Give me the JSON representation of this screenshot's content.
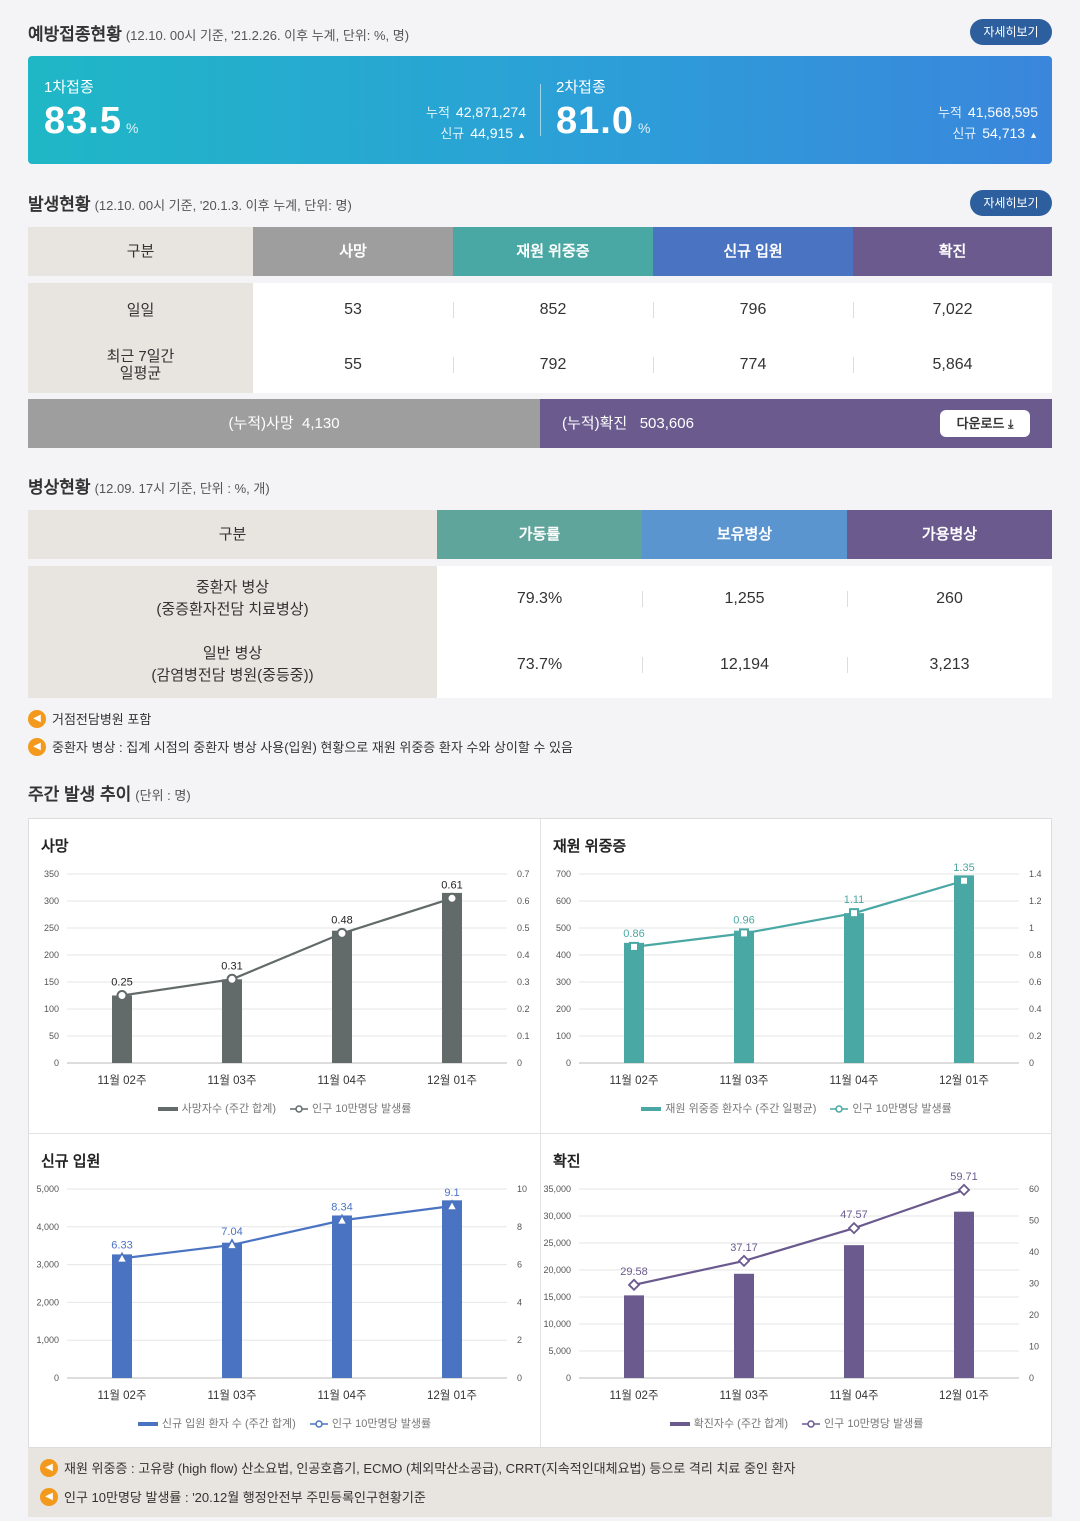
{
  "vaccination": {
    "title": "예방접종현황",
    "subtitle": "(12.10. 00시 기준, '21.2.26. 이후 누계, 단위: %, 명)",
    "detail_label": "자세히보기",
    "first": {
      "label": "1차접종",
      "pct": "83.5",
      "unit": "%",
      "cum_label": "누적",
      "cum": "42,871,274",
      "new_label": "신규",
      "new": "44,915"
    },
    "second": {
      "label": "2차접종",
      "pct": "81.0",
      "unit": "%",
      "cum_label": "누적",
      "cum": "41,568,595",
      "new_label": "신규",
      "new": "54,713"
    }
  },
  "occurrence": {
    "title": "발생현황",
    "subtitle": "(12.10. 00시 기준, '20.1.3. 이후 누계, 단위: 명)",
    "detail_label": "자세히보기",
    "headers": [
      "구분",
      "사망",
      "재원 위중증",
      "신규 입원",
      "확진"
    ],
    "header_colors": [
      "#e8e4df",
      "#9e9e9e",
      "#4aa8a4",
      "#4a74c2",
      "#6a5a8e"
    ],
    "rows": [
      {
        "label": "일일",
        "values": [
          "53",
          "852",
          "796",
          "7,022"
        ]
      },
      {
        "label": "최근 7일간\n일평균",
        "values": [
          "55",
          "792",
          "774",
          "5,864"
        ]
      }
    ],
    "cum_death_label": "(누적)사망",
    "cum_death": "4,130",
    "cum_conf_label": "(누적)확진",
    "cum_conf": "503,606",
    "download_label": "다운로드"
  },
  "beds": {
    "title": "병상현황",
    "subtitle": "(12.09. 17시 기준, 단위 : %, 개)",
    "headers": [
      "구분",
      "가동률",
      "보유병상",
      "가용병상"
    ],
    "header_colors": [
      "#e8e4df",
      "#5fa59c",
      "#5b95cf",
      "#6a5a8e"
    ],
    "rows": [
      {
        "label": "중환자 병상\n(중증환자전담 치료병상)",
        "values": [
          "79.3%",
          "1,255",
          "260"
        ]
      },
      {
        "label": "일반 병상\n(감염병전담 병원(중등중))",
        "values": [
          "73.7%",
          "12,194",
          "3,213"
        ]
      }
    ],
    "notes": [
      "거점전담병원 포함",
      "중환자 병상 : 집계 시점의 중환자 병상 사용(입원) 현황으로 재원 위중증 환자 수와 상이할 수 있음"
    ]
  },
  "weekly": {
    "title": "주간 발생 추이",
    "subtitle": "(단위 : 명)",
    "footnotes": [
      "재원 위중증 : 고유량 (high flow) 산소요법, 인공호흡기, ECMO (체외막산소공급), CRRT(지속적인대체요법) 등으로 격리 치료 중인 환자",
      "인구 10만명당 발생률 : '20.12월 행정안전부 주민등록인구현황기준"
    ]
  },
  "chart_data": [
    {
      "type": "bar",
      "title": "사망",
      "categories": [
        "11월 02주",
        "11월 03주",
        "11월 04주",
        "12월 01주"
      ],
      "series": [
        {
          "name": "사망자수 (주간 합계)",
          "values": [
            125,
            155,
            245,
            315
          ],
          "axis": "left"
        },
        {
          "name": "인구 10만명당 발생률",
          "values": [
            0.25,
            0.31,
            0.48,
            0.61
          ],
          "axis": "right",
          "kind": "line"
        }
      ],
      "ylim": [
        0,
        350
      ],
      "yticks": [
        "0",
        "50",
        "100",
        "150",
        "200",
        "250",
        "300",
        "350"
      ],
      "y2lim": [
        0,
        0.7
      ],
      "y2ticks": [
        "0",
        "0.1",
        "0.2",
        "0.3",
        "0.4",
        "0.5",
        "0.6",
        "0.7"
      ],
      "bar_color": "#626a6a",
      "line_color": "#626a6a",
      "marker": "circle"
    },
    {
      "type": "bar",
      "title": "재원 위중증",
      "categories": [
        "11월 02주",
        "11월 03주",
        "11월 04주",
        "12월 01주"
      ],
      "series": [
        {
          "name": "재원 위중증 환자수 (주간 일평균)",
          "values": [
            445,
            490,
            555,
            695
          ],
          "axis": "left"
        },
        {
          "name": "인구 10만명당 발생률",
          "values": [
            0.86,
            0.96,
            1.11,
            1.35
          ],
          "axis": "right",
          "kind": "line"
        }
      ],
      "ylim": [
        0,
        700
      ],
      "yticks": [
        "0",
        "100",
        "200",
        "300",
        "400",
        "500",
        "600",
        "700"
      ],
      "y2lim": [
        0,
        1.4
      ],
      "y2ticks": [
        "0",
        "0.2",
        "0.4",
        "0.6",
        "0.8",
        "1",
        "1.2",
        "1.4"
      ],
      "bar_color": "#4aa8a4",
      "line_color": "#4aa8a4",
      "marker": "square"
    },
    {
      "type": "bar",
      "title": "신규 입원",
      "categories": [
        "11월 02주",
        "11월 03주",
        "11월 04주",
        "12월 01주"
      ],
      "series": [
        {
          "name": "신규 입원 환자 수 (주간 합계)",
          "values": [
            3270,
            3580,
            4300,
            4700
          ],
          "axis": "left"
        },
        {
          "name": "인구 10만명당 발생률",
          "values": [
            6.33,
            7.04,
            8.34,
            9.1
          ],
          "axis": "right",
          "kind": "line"
        }
      ],
      "ylim": [
        0,
        5000
      ],
      "yticks": [
        "0",
        "1,000",
        "2,000",
        "3,000",
        "4,000",
        "5,000"
      ],
      "y2lim": [
        0,
        10
      ],
      "y2ticks": [
        "0",
        "2",
        "4",
        "6",
        "8",
        "10"
      ],
      "bar_color": "#4a74c2",
      "line_color": "#4a74c2",
      "marker": "triangle"
    },
    {
      "type": "bar",
      "title": "확진",
      "categories": [
        "11월 02주",
        "11월 03주",
        "11월 04주",
        "12월 01주"
      ],
      "series": [
        {
          "name": "확진자수 (주간 합계)",
          "values": [
            15300,
            19300,
            24600,
            30800
          ],
          "axis": "left"
        },
        {
          "name": "인구 10만명당 발생률",
          "values": [
            29.58,
            37.17,
            47.57,
            59.71
          ],
          "axis": "right",
          "kind": "line"
        }
      ],
      "ylim": [
        0,
        35000
      ],
      "yticks": [
        "0",
        "5,000",
        "10,000",
        "15,000",
        "20,000",
        "25,000",
        "30,000",
        "35,000"
      ],
      "y2lim": [
        0,
        60
      ],
      "y2ticks": [
        "0",
        "10",
        "20",
        "30",
        "40",
        "50",
        "60"
      ],
      "bar_color": "#6a5a8e",
      "line_color": "#6a5a8e",
      "marker": "diamond"
    }
  ]
}
